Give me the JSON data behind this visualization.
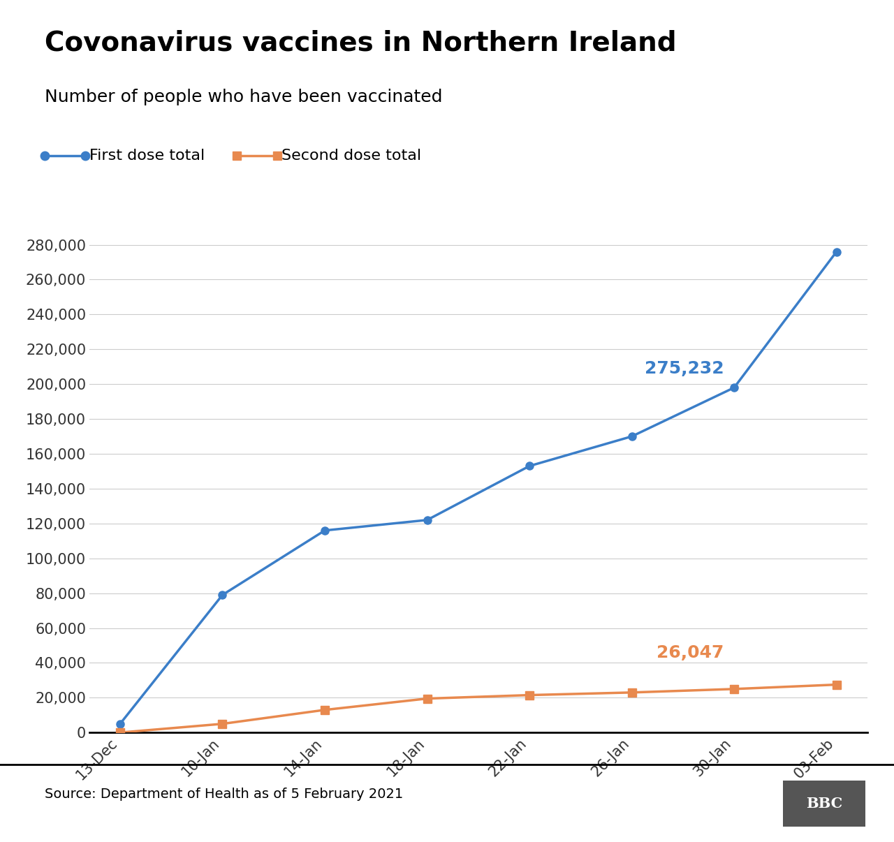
{
  "title": "Covonavirus vaccines in Northern Ireland",
  "subtitle": "Number of people who have been vaccinated",
  "source": "Source: Department of Health as of 5 February 2021",
  "first_dose_dates": [
    "13-Dec",
    "10-Jan",
    "14-Jan",
    "18-Jan",
    "22-Jan",
    "26-Jan",
    "30-Jan",
    "03-Feb"
  ],
  "first_dose_values": [
    5000,
    79000,
    116000,
    122000,
    153000,
    170000,
    198000,
    276000
  ],
  "second_dose_values": [
    0,
    5000,
    13000,
    19500,
    21500,
    23000,
    25000,
    27500
  ],
  "first_dose_color": "#3b7ec8",
  "second_dose_color": "#e8894e",
  "first_dose_label": "First dose total",
  "second_dose_label": "Second dose total",
  "first_dose_annotation": "275,232",
  "second_dose_annotation": "26,047",
  "ylim": [
    0,
    290000
  ],
  "yticks": [
    0,
    20000,
    40000,
    60000,
    80000,
    100000,
    120000,
    140000,
    160000,
    180000,
    200000,
    220000,
    240000,
    260000,
    280000
  ],
  "background_color": "#ffffff",
  "grid_color": "#cccccc",
  "title_fontsize": 28,
  "subtitle_fontsize": 18,
  "tick_fontsize": 15,
  "legend_fontsize": 16,
  "annotation_fontsize": 18,
  "source_fontsize": 14
}
